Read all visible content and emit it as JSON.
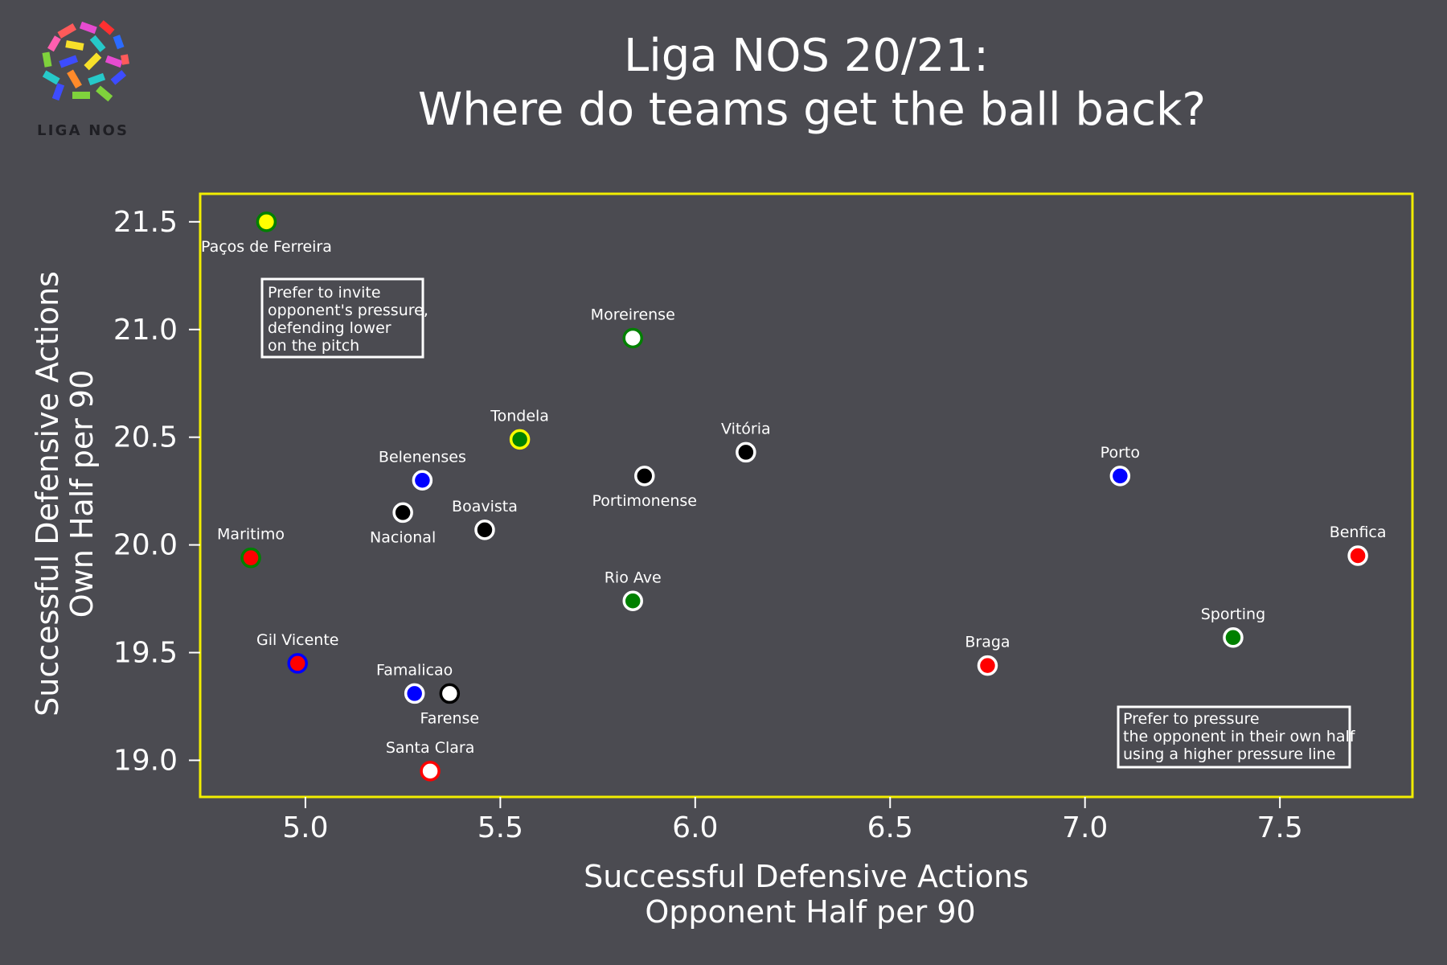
{
  "logo": {
    "text": "LIGA NOS"
  },
  "chart_data": {
    "type": "scatter",
    "title": [
      "Liga NOS 20/21:",
      "Where do teams get the ball back?"
    ],
    "xlabel": [
      "Successful Defensive Actions",
      "Opponent Half per 90"
    ],
    "ylabel": [
      "Successful Defensive Actions",
      "Own Half per 90"
    ],
    "xlim": [
      4.73,
      7.84
    ],
    "ylim": [
      18.83,
      21.63
    ],
    "xticks": [
      5.0,
      5.5,
      6.0,
      6.5,
      7.0,
      7.5
    ],
    "yticks": [
      19.0,
      19.5,
      20.0,
      20.5,
      21.0,
      21.5
    ],
    "grid": false,
    "frame_color": "#f2ee00",
    "points": [
      {
        "name": "Paços de Ferreira",
        "x": 4.9,
        "y": 21.5,
        "fill": "#ffff00",
        "edge": "#008000",
        "label_pos": "below"
      },
      {
        "name": "Moreirense",
        "x": 5.84,
        "y": 20.96,
        "fill": "#ffffff",
        "edge": "#008000",
        "label_pos": "above"
      },
      {
        "name": "Tondela",
        "x": 5.55,
        "y": 20.49,
        "fill": "#008000",
        "edge": "#ffff00",
        "label_pos": "above"
      },
      {
        "name": "Vitória",
        "x": 6.13,
        "y": 20.43,
        "fill": "#000000",
        "edge": "#ffffff",
        "label_pos": "above"
      },
      {
        "name": "Portimonense",
        "x": 5.87,
        "y": 20.32,
        "fill": "#000000",
        "edge": "#ffffff",
        "label_pos": "below"
      },
      {
        "name": "Porto",
        "x": 7.09,
        "y": 20.32,
        "fill": "#0000ff",
        "edge": "#ffffff",
        "label_pos": "above"
      },
      {
        "name": "Belenenses",
        "x": 5.3,
        "y": 20.3,
        "fill": "#0000ff",
        "edge": "#ffffff",
        "label_pos": "above"
      },
      {
        "name": "Nacional",
        "x": 5.25,
        "y": 20.15,
        "fill": "#000000",
        "edge": "#ffffff",
        "label_pos": "below"
      },
      {
        "name": "Boavista",
        "x": 5.46,
        "y": 20.07,
        "fill": "#000000",
        "edge": "#ffffff",
        "label_pos": "above"
      },
      {
        "name": "Maritimo",
        "x": 4.86,
        "y": 19.94,
        "fill": "#ff0000",
        "edge": "#008000",
        "label_pos": "above"
      },
      {
        "name": "Benfica",
        "x": 7.7,
        "y": 19.95,
        "fill": "#ff0000",
        "edge": "#ffffff",
        "label_pos": "above"
      },
      {
        "name": "Rio Ave",
        "x": 5.84,
        "y": 19.74,
        "fill": "#008000",
        "edge": "#ffffff",
        "label_pos": "above"
      },
      {
        "name": "Sporting",
        "x": 7.38,
        "y": 19.57,
        "fill": "#008000",
        "edge": "#ffffff",
        "label_pos": "above"
      },
      {
        "name": "Gil Vicente",
        "x": 4.98,
        "y": 19.45,
        "fill": "#ff0000",
        "edge": "#0000ff",
        "label_pos": "above"
      },
      {
        "name": "Braga",
        "x": 6.75,
        "y": 19.44,
        "fill": "#ff0000",
        "edge": "#ffffff",
        "label_pos": "above"
      },
      {
        "name": "Famalicao",
        "x": 5.28,
        "y": 19.31,
        "fill": "#0000ff",
        "edge": "#ffffff",
        "label_pos": "above"
      },
      {
        "name": "Farense",
        "x": 5.37,
        "y": 19.31,
        "fill": "#ffffff",
        "edge": "#000000",
        "label_pos": "below"
      },
      {
        "name": "Santa Clara",
        "x": 5.32,
        "y": 18.95,
        "fill": "#ffffff",
        "edge": "#ff0000",
        "label_pos": "above"
      }
    ],
    "annotations": [
      {
        "id": "low-block-note",
        "lines": [
          "Prefer to invite",
          "opponent's pressure,",
          "defending lower",
          "on the pitch"
        ]
      },
      {
        "id": "high-press-note",
        "lines": [
          "Prefer to pressure",
          "the opponent in their own half",
          "using a higher pressure line"
        ]
      }
    ]
  }
}
